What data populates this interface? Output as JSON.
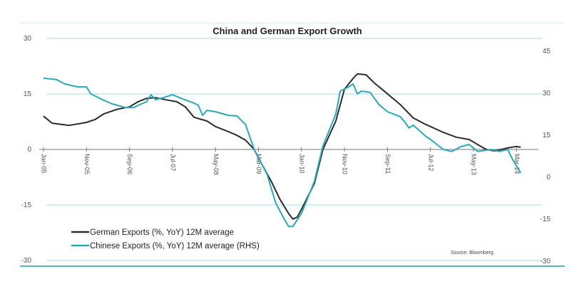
{
  "chart_data": {
    "type": "line",
    "title": "China and German Export Growth",
    "source": "Source: Bloomberg",
    "legend_position": "bottom-left",
    "grid": true,
    "x_tick_labels": [
      "Jan-05",
      "Nov-05",
      "Sep-06",
      "Jul-07",
      "May-08",
      "Mar-09",
      "Jan-10",
      "Nov-10",
      "Sep-11",
      "Jul-12",
      "May-13",
      "Mar-14"
    ],
    "y_left": {
      "ticks": [
        30,
        15,
        0,
        -15,
        -30
      ],
      "tick_labels": [
        "30",
        "15",
        "0",
        "-15",
        "-30"
      ],
      "ylim": [
        -30,
        30
      ]
    },
    "y_right": {
      "ticks": [
        45,
        30,
        15,
        0,
        -15,
        -30
      ],
      "tick_labels": [
        "45",
        "30",
        "15",
        "0",
        "-15",
        "-30"
      ],
      "ylim": [
        -30,
        50
      ]
    },
    "series": [
      {
        "name": "German Exports (%, YoY) 12M average",
        "axis": "left",
        "color": "#2b2b2b",
        "x": [
          "2005-01",
          "2005-03",
          "2005-07",
          "2005-11",
          "2006-01",
          "2006-03",
          "2006-06",
          "2006-09",
          "2006-11",
          "2007-01",
          "2007-03",
          "2007-06",
          "2007-08",
          "2007-10",
          "2007-12",
          "2008-03",
          "2008-05",
          "2008-08",
          "2008-10",
          "2008-12",
          "2009-02",
          "2009-03",
          "2009-06",
          "2009-08",
          "2009-10",
          "2009-11",
          "2009-12",
          "2010-01",
          "2010-04",
          "2010-06",
          "2010-09",
          "2010-11",
          "2011-01",
          "2011-02",
          "2011-04",
          "2011-06",
          "2011-08",
          "2011-12",
          "2012-03",
          "2012-06",
          "2012-07",
          "2012-10",
          "2013-01",
          "2013-04",
          "2013-06",
          "2013-08",
          "2013-10",
          "2014-01",
          "2014-03",
          "2014-04"
        ],
        "y": [
          9.0,
          7.1,
          6.5,
          7.3,
          8.1,
          9.6,
          10.8,
          11.5,
          12.9,
          13.8,
          14.0,
          13.3,
          12.9,
          11.5,
          8.7,
          7.7,
          6.2,
          4.8,
          3.8,
          2.5,
          0,
          -2.3,
          -8.7,
          -13.5,
          -17.3,
          -18.8,
          -18.3,
          -16.2,
          -9.2,
          0,
          7.7,
          16.3,
          19.2,
          20.4,
          20.2,
          17.9,
          16.0,
          12.1,
          8.5,
          6.7,
          6.2,
          4.6,
          3.3,
          2.7,
          1.3,
          0,
          -0.4,
          0.4,
          0.8,
          0.6
        ]
      },
      {
        "name": "Chinese Exports (%, YoY) 12M average (RHS)",
        "axis": "right",
        "color": "#29a9b9",
        "x": [
          "2005-01",
          "2005-04",
          "2005-06",
          "2005-09",
          "2005-11",
          "2005-12",
          "2006-03",
          "2006-05",
          "2006-08",
          "2006-10",
          "2006-11",
          "2007-01",
          "2007-02",
          "2007-03",
          "2007-05",
          "2007-07",
          "2007-09",
          "2007-12",
          "2008-01",
          "2008-02",
          "2008-03",
          "2008-05",
          "2008-08",
          "2008-10",
          "2008-12",
          "2009-02",
          "2009-05",
          "2009-07",
          "2009-09",
          "2009-10",
          "2009-11",
          "2010-01",
          "2010-04",
          "2010-06",
          "2010-09",
          "2010-10",
          "2010-12",
          "2011-01",
          "2011-02",
          "2011-03",
          "2011-05",
          "2011-07",
          "2011-09",
          "2011-12",
          "2012-01",
          "2012-02",
          "2012-03",
          "2012-06",
          "2012-07",
          "2012-10",
          "2012-12",
          "2013-02",
          "2013-04",
          "2013-06",
          "2013-09",
          "2013-11",
          "2014-01",
          "2014-02",
          "2014-04"
        ],
        "y": [
          35.4,
          34.9,
          33.3,
          32.3,
          32.3,
          29.8,
          27.5,
          26.2,
          24.9,
          24.9,
          25.7,
          27.0,
          29.5,
          27.7,
          28.5,
          29.5,
          28.2,
          26.5,
          25.7,
          22.1,
          23.9,
          23.4,
          22.1,
          21.9,
          18.8,
          9.9,
          1.0,
          -9.2,
          -15.0,
          -17.6,
          -17.6,
          -13.0,
          -1.5,
          11.2,
          22.6,
          30.8,
          32.3,
          33.3,
          29.8,
          30.8,
          30.3,
          26.0,
          23.4,
          21.6,
          19.8,
          17.6,
          18.6,
          14.5,
          13.5,
          9.9,
          9.2,
          10.9,
          11.7,
          9.2,
          9.9,
          9.2,
          9.9,
          6.6,
          1.5
        ]
      }
    ]
  }
}
